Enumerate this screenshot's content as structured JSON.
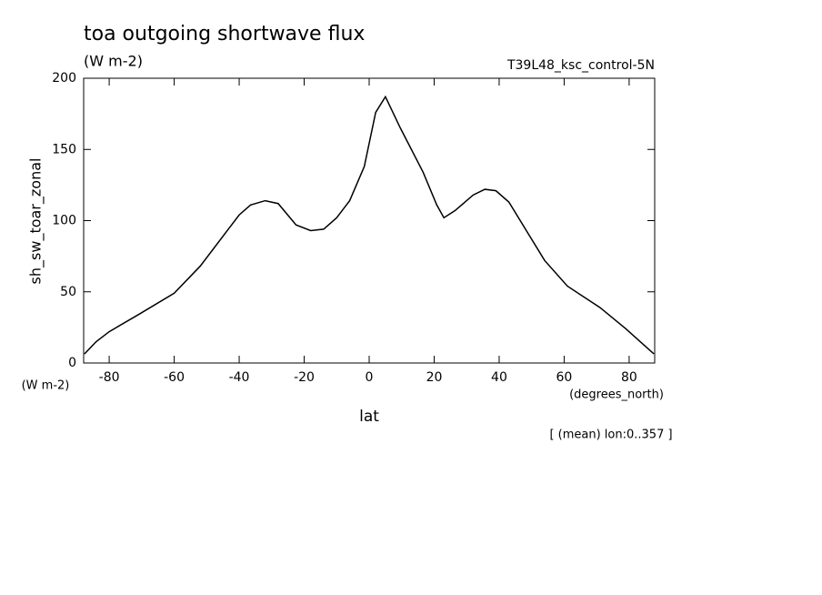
{
  "chart_data": {
    "type": "line",
    "title": "toa outgoing shortwave flux",
    "subtitle": "(W m-2)",
    "dataset_label": "T39L48_ksc_control-5N",
    "y_label": "sh_sw_toar_zonal",
    "y_units": "(W m-2)",
    "x_units": "(degrees_north)",
    "x_label": "lat",
    "annotation": "[ (mean) lon:0..357 ]",
    "x": [
      -87.6,
      -84,
      -80,
      -71,
      -60,
      -52,
      -40,
      -36.5,
      -32,
      -28,
      -22.5,
      -18,
      -14,
      -10,
      -6,
      -1.5,
      2,
      5,
      9.6,
      16.6,
      20.8,
      23,
      26.4,
      32,
      35.6,
      39,
      43,
      54,
      61,
      71,
      79,
      87.6
    ],
    "series": [
      {
        "name": "sh_sw_toar_zonal",
        "color": "#000000",
        "values": [
          6.4,
          15,
          22,
          34,
          49,
          68,
          104,
          111,
          114,
          112,
          97,
          93,
          94,
          102,
          114,
          138,
          176,
          187,
          165,
          134,
          111,
          102,
          107,
          118,
          122,
          121,
          113,
          72,
          54,
          39,
          24,
          6.4
        ]
      }
    ],
    "xlim": [
      -87.86,
      87.86
    ],
    "ylim": [
      0,
      200
    ],
    "xticks": [
      -80,
      -60,
      -40,
      -20,
      0,
      20,
      40,
      60,
      80
    ],
    "yticks": [
      0,
      50,
      100,
      150,
      200
    ]
  }
}
